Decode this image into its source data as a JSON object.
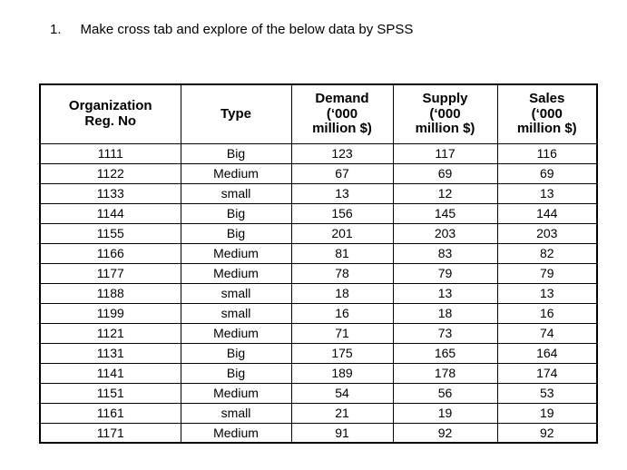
{
  "heading": {
    "number": "1.",
    "text": "Make cross tab and explore of the below data by SPSS"
  },
  "table": {
    "headers": [
      "Organization\nReg. No",
      "Type",
      "Demand\n(‘000\nmillion $)",
      "Supply\n(‘000\nmillion $)",
      "Sales\n(‘000\nmillion $)"
    ],
    "column_keys": [
      "org-reg-no",
      "type",
      "demand",
      "supply",
      "sales"
    ],
    "rows": [
      [
        "1111",
        "Big",
        "123",
        "117",
        "116"
      ],
      [
        "1122",
        "Medium",
        "67",
        "69",
        "69"
      ],
      [
        "1133",
        "small",
        "13",
        "12",
        "13"
      ],
      [
        "1144",
        "Big",
        "156",
        "145",
        "144"
      ],
      [
        "1155",
        "Big",
        "201",
        "203",
        "203"
      ],
      [
        "1166",
        "Medium",
        "81",
        "83",
        "82"
      ],
      [
        "1177",
        "Medium",
        "78",
        "79",
        "79"
      ],
      [
        "1188",
        "small",
        "18",
        "13",
        "13"
      ],
      [
        "1199",
        "small",
        "16",
        "18",
        "16"
      ],
      [
        "1121",
        "Medium",
        "71",
        "73",
        "74"
      ],
      [
        "1131",
        "Big",
        "175",
        "165",
        "164"
      ],
      [
        "1141",
        "Big",
        "189",
        "178",
        "174"
      ],
      [
        "1151",
        "Medium",
        "54",
        "56",
        "53"
      ],
      [
        "1161",
        "small",
        "21",
        "19",
        "19"
      ],
      [
        "1171",
        "Medium",
        "91",
        "92",
        "92"
      ]
    ]
  },
  "colors": {
    "text": "#000000",
    "border": "#000000",
    "background": "#ffffff"
  }
}
